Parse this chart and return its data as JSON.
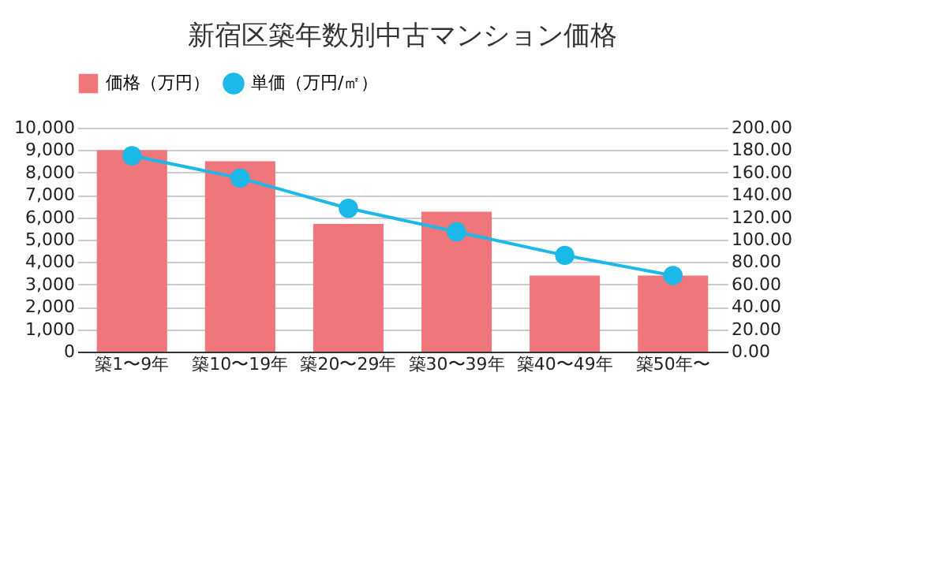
{
  "chart_data": {
    "type": "bar",
    "title": "新宿区築年数別中古マンション価格",
    "categories": [
      "築1〜9年",
      "築10〜19年",
      "築20〜29年",
      "築30〜39年",
      "築40〜49年",
      "築50年〜"
    ],
    "series": [
      {
        "name": "価格（万円）",
        "color": "#ef767a",
        "values": [
          9000,
          8500,
          5700,
          6250,
          3400,
          3400
        ]
      },
      {
        "name": "単価（万円/㎡）",
        "type": "line",
        "axis": "y2",
        "color": "#1cb8e8",
        "marker": "circle",
        "values": [
          175,
          155,
          128,
          107,
          86,
          68
        ]
      }
    ],
    "ylim": [
      0,
      10000
    ],
    "yticks": [
      {
        "value": 0,
        "label": "0"
      },
      {
        "value": 1000,
        "label": "1,000"
      },
      {
        "value": 2000,
        "label": "2,000"
      },
      {
        "value": 3000,
        "label": "3,000"
      },
      {
        "value": 4000,
        "label": "4,000"
      },
      {
        "value": 5000,
        "label": "5,000"
      },
      {
        "value": 6000,
        "label": "6,000"
      },
      {
        "value": 7000,
        "label": "7,000"
      },
      {
        "value": 8000,
        "label": "8,000"
      },
      {
        "value": 9000,
        "label": "9,000"
      },
      {
        "value": 10000,
        "label": "10,000"
      }
    ],
    "y2lim": [
      0,
      200
    ],
    "y2ticks": [
      {
        "value": 0,
        "label": "0.00"
      },
      {
        "value": 20,
        "label": "20.00"
      },
      {
        "value": 40,
        "label": "40.00"
      },
      {
        "value": 60,
        "label": "60.00"
      },
      {
        "value": 80,
        "label": "80.00"
      },
      {
        "value": 100,
        "label": "100.00"
      },
      {
        "value": 120,
        "label": "120.00"
      },
      {
        "value": 140,
        "label": "140.00"
      },
      {
        "value": 160,
        "label": "160.00"
      },
      {
        "value": 180,
        "label": "180.00"
      },
      {
        "value": 200,
        "label": "200.00"
      }
    ],
    "grid": "y",
    "legend": "top"
  }
}
